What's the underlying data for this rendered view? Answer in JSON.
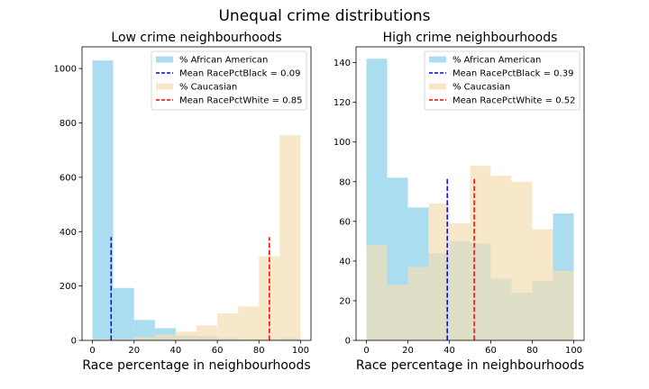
{
  "suptitle": "Unequal crime distributions",
  "colors": {
    "african_american": "#87ceeb",
    "caucasian": "#f5deb3",
    "mean_black_line": "#0000ff",
    "mean_white_line": "#ff0000"
  },
  "chart_data": [
    {
      "type": "bar",
      "title": "Low crime neighbourhoods",
      "xlabel": "Race percentage in neighbourhoods",
      "ylabel": "",
      "xlim": [
        -5,
        105
      ],
      "ylim": [
        0,
        1080
      ],
      "xticks": [
        0,
        20,
        40,
        60,
        80,
        100
      ],
      "yticks": [
        0,
        200,
        400,
        600,
        800,
        1000
      ],
      "bin_edges": [
        0,
        10,
        20,
        30,
        40,
        50,
        60,
        70,
        80,
        90,
        100
      ],
      "series": [
        {
          "name": "% African American",
          "values": [
            1030,
            193,
            75,
            45,
            18,
            15,
            8,
            5,
            5,
            8
          ]
        },
        {
          "name": "% Caucasian",
          "values": [
            5,
            5,
            12,
            22,
            32,
            55,
            100,
            125,
            310,
            755
          ]
        }
      ],
      "mean_lines": [
        {
          "name": "Mean RacePctBlack = 0.09",
          "x": 9,
          "y_top": 380,
          "style": "dashed",
          "color_key": "mean_black_line"
        },
        {
          "name": "Mean RacePctWhite = 0.85",
          "x": 85,
          "y_top": 380,
          "style": "dashed",
          "color_key": "mean_white_line"
        }
      ],
      "legend": {
        "position": "top-right",
        "entries": [
          {
            "label": "% African American",
            "kind": "patch",
            "color_key": "african_american"
          },
          {
            "label": "Mean RacePctBlack = 0.09",
            "kind": "line",
            "color_key": "mean_black_line"
          },
          {
            "label": "% Caucasian",
            "kind": "patch",
            "color_key": "caucasian"
          },
          {
            "label": "Mean RacePctWhite = 0.85",
            "kind": "line",
            "color_key": "mean_white_line"
          }
        ]
      }
    },
    {
      "type": "bar",
      "title": "High crime neighbourhoods",
      "xlabel": "Race percentage in neighbourhoods",
      "ylabel": "",
      "xlim": [
        -5,
        105
      ],
      "ylim": [
        0,
        148
      ],
      "xticks": [
        0,
        20,
        40,
        60,
        80,
        100
      ],
      "yticks": [
        0,
        20,
        40,
        60,
        80,
        100,
        120,
        140
      ],
      "bin_edges": [
        0,
        10,
        20,
        30,
        40,
        50,
        60,
        70,
        80,
        90,
        100
      ],
      "series": [
        {
          "name": "% African American",
          "values": [
            142,
            82,
            67,
            44,
            50,
            49,
            31,
            24,
            30,
            64
          ]
        },
        {
          "name": "% Caucasian",
          "values": [
            48,
            28,
            37,
            69,
            59,
            88,
            83,
            80,
            56,
            35
          ]
        }
      ],
      "mean_lines": [
        {
          "name": "Mean RacePctBlack = 0.39",
          "x": 39,
          "y_top": 82,
          "style": "dashed",
          "color_key": "mean_black_line"
        },
        {
          "name": "Mean RacePctWhite = 0.52",
          "x": 52,
          "y_top": 82,
          "style": "dashed",
          "color_key": "mean_white_line"
        }
      ],
      "legend": {
        "position": "top-right",
        "entries": [
          {
            "label": "% African American",
            "kind": "patch",
            "color_key": "african_american"
          },
          {
            "label": "Mean RacePctBlack = 0.39",
            "kind": "line",
            "color_key": "mean_black_line"
          },
          {
            "label": "% Caucasian",
            "kind": "patch",
            "color_key": "caucasian"
          },
          {
            "label": "Mean RacePctWhite = 0.52",
            "kind": "line",
            "color_key": "mean_white_line"
          }
        ]
      }
    }
  ]
}
